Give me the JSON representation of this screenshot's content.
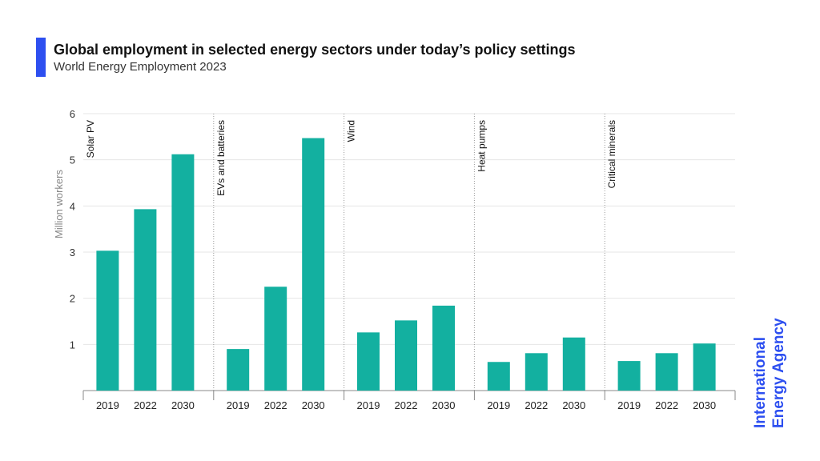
{
  "header": {
    "title": "Global employment in selected energy sectors under today’s policy settings",
    "subtitle": "World Energy Employment 2023"
  },
  "brand": {
    "line1": "International",
    "line2": "Energy Agency",
    "color": "#2d4ff0"
  },
  "colors": {
    "accent_bar": "#2d4ff0",
    "bar_fill": "#13b0a0",
    "axis": "#888888",
    "grid": "#e6e6e6",
    "divider": "#9a9a9a"
  },
  "chart_data": {
    "type": "bar",
    "ylabel": "Million workers",
    "ylim": [
      0,
      6
    ],
    "yticks": [
      1,
      2,
      3,
      4,
      5,
      6
    ],
    "grid": true,
    "categories": [
      "2019",
      "2022",
      "2030"
    ],
    "panels": [
      {
        "name": "Solar PV",
        "values": [
          3.03,
          3.93,
          5.12
        ]
      },
      {
        "name": "EVs and batteries",
        "values": [
          0.9,
          2.25,
          5.47
        ]
      },
      {
        "name": "Wind",
        "values": [
          1.26,
          1.52,
          1.84
        ]
      },
      {
        "name": "Heat pumps",
        "values": [
          0.62,
          0.81,
          1.15
        ]
      },
      {
        "name": "Critical minerals",
        "values": [
          0.64,
          0.81,
          1.02
        ]
      }
    ]
  }
}
